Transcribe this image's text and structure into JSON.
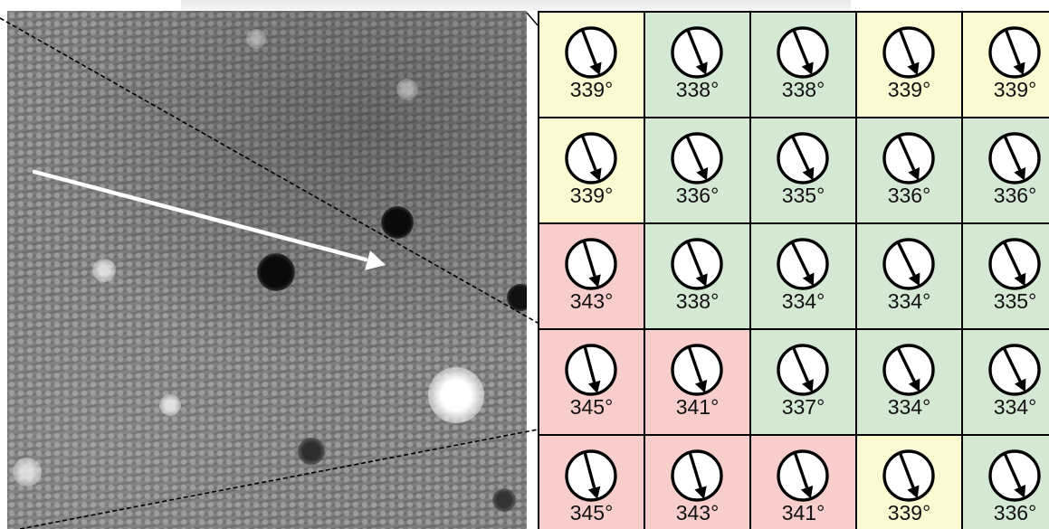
{
  "grid": {
    "rows": [
      [
        {
          "angle": 339,
          "label": "339°",
          "color": "#fcfad2"
        },
        {
          "angle": 338,
          "label": "338°",
          "color": "#d5e8d4"
        },
        {
          "angle": 338,
          "label": "338°",
          "color": "#d5e8d4"
        },
        {
          "angle": 339,
          "label": "339°",
          "color": "#fcfad2"
        },
        {
          "angle": 339,
          "label": "339°",
          "color": "#fcfad2"
        }
      ],
      [
        {
          "angle": 339,
          "label": "339°",
          "color": "#fcfad2"
        },
        {
          "angle": 336,
          "label": "336°",
          "color": "#d5e8d4"
        },
        {
          "angle": 335,
          "label": "335°",
          "color": "#d5e8d4"
        },
        {
          "angle": 336,
          "label": "336°",
          "color": "#d5e8d4"
        },
        {
          "angle": 336,
          "label": "336°",
          "color": "#d5e8d4"
        }
      ],
      [
        {
          "angle": 343,
          "label": "343°",
          "color": "#f8cecc"
        },
        {
          "angle": 338,
          "label": "338°",
          "color": "#d5e8d4"
        },
        {
          "angle": 334,
          "label": "334°",
          "color": "#d5e8d4"
        },
        {
          "angle": 334,
          "label": "334°",
          "color": "#d5e8d4"
        },
        {
          "angle": 335,
          "label": "335°",
          "color": "#d5e8d4"
        }
      ],
      [
        {
          "angle": 345,
          "label": "345°",
          "color": "#f8cecc"
        },
        {
          "angle": 341,
          "label": "341°",
          "color": "#f8cecc"
        },
        {
          "angle": 337,
          "label": "337°",
          "color": "#d5e8d4"
        },
        {
          "angle": 334,
          "label": "334°",
          "color": "#d5e8d4"
        },
        {
          "angle": 334,
          "label": "334°",
          "color": "#d5e8d4"
        }
      ],
      [
        {
          "angle": 345,
          "label": "345°",
          "color": "#f8cecc"
        },
        {
          "angle": 343,
          "label": "343°",
          "color": "#f8cecc"
        },
        {
          "angle": 341,
          "label": "341°",
          "color": "#f8cecc"
        },
        {
          "angle": 339,
          "label": "339°",
          "color": "#fcfad2"
        },
        {
          "angle": 336,
          "label": "336°",
          "color": "#d5e8d4"
        }
      ]
    ]
  },
  "colors": {
    "high": "#f8cecc",
    "mid": "#fcfad2",
    "low": "#d5e8d4",
    "grid_border": "#000000",
    "arrow": "#ffffff",
    "zoom_lines": "#000000"
  },
  "icons": {
    "dial": "direction-dial-icon",
    "arrow": "orientation-arrow-icon"
  }
}
